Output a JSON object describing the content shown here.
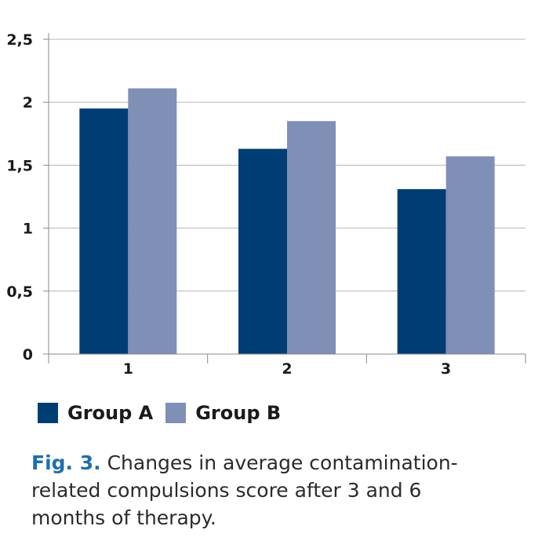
{
  "chart_data": {
    "type": "bar",
    "categories": [
      "1",
      "2",
      "3"
    ],
    "series": [
      {
        "name": "Group A",
        "values": [
          1.95,
          1.63,
          1.31
        ],
        "color": "#003d73"
      },
      {
        "name": "Group B",
        "values": [
          2.11,
          1.85,
          1.57
        ],
        "color": "#7f8fb6"
      }
    ],
    "ylim": [
      0,
      2.5
    ],
    "yticks": [
      "0",
      "0,5",
      "1",
      "1,5",
      "2",
      "2,5"
    ],
    "grid": true,
    "legend": "bottom-left"
  },
  "caption": {
    "label": "Fig. 3.",
    "text": "Changes in average contamination-related compulsions score after 3 and 6 months of therapy."
  }
}
